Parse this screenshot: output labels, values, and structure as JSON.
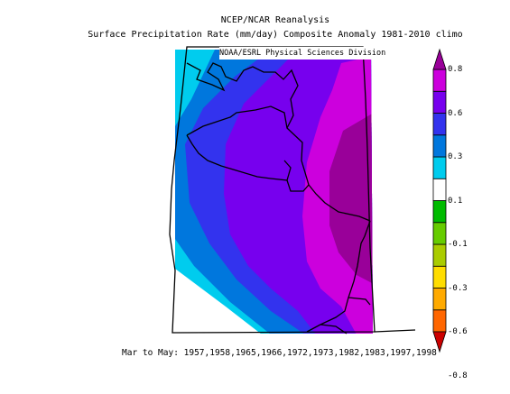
{
  "title_line1": "NCEP/NCAR Reanalysis",
  "title_line2": "Surface Precipitation Rate (mm/day) Composite Anomaly 1981-2010 climo",
  "credit": "NOAA/ESRL Physical Sciences Division",
  "footer": "Mar to May: 1957,1958,1965,1966,1972,1973,1982,1983,1997,1998",
  "colorbar": {
    "levels": [
      {
        "color": "#cc0000"
      },
      {
        "color": "#ff6600"
      },
      {
        "color": "#ffaa00"
      },
      {
        "color": "#ffdd00"
      },
      {
        "color": "#aacc00"
      },
      {
        "color": "#66cc00"
      },
      {
        "color": "#00bb00"
      },
      {
        "color": "#ffffff"
      },
      {
        "color": "#00ccee"
      },
      {
        "color": "#0077dd"
      },
      {
        "color": "#3333ee"
      },
      {
        "color": "#7700ee"
      },
      {
        "color": "#cc00dd"
      },
      {
        "color": "#990099"
      }
    ],
    "tick_labels": [
      "0.8",
      "0.6",
      "0.3",
      "0.1",
      "-0.1",
      "-0.3",
      "-0.6",
      "-0.8"
    ]
  },
  "palette": {
    "cyan": "#00ccee",
    "blue": "#0077dd",
    "indigo": "#3333ee",
    "violet": "#7700ee",
    "magenta": "#cc00dd",
    "purple": "#990099",
    "white": "#ffffff"
  }
}
